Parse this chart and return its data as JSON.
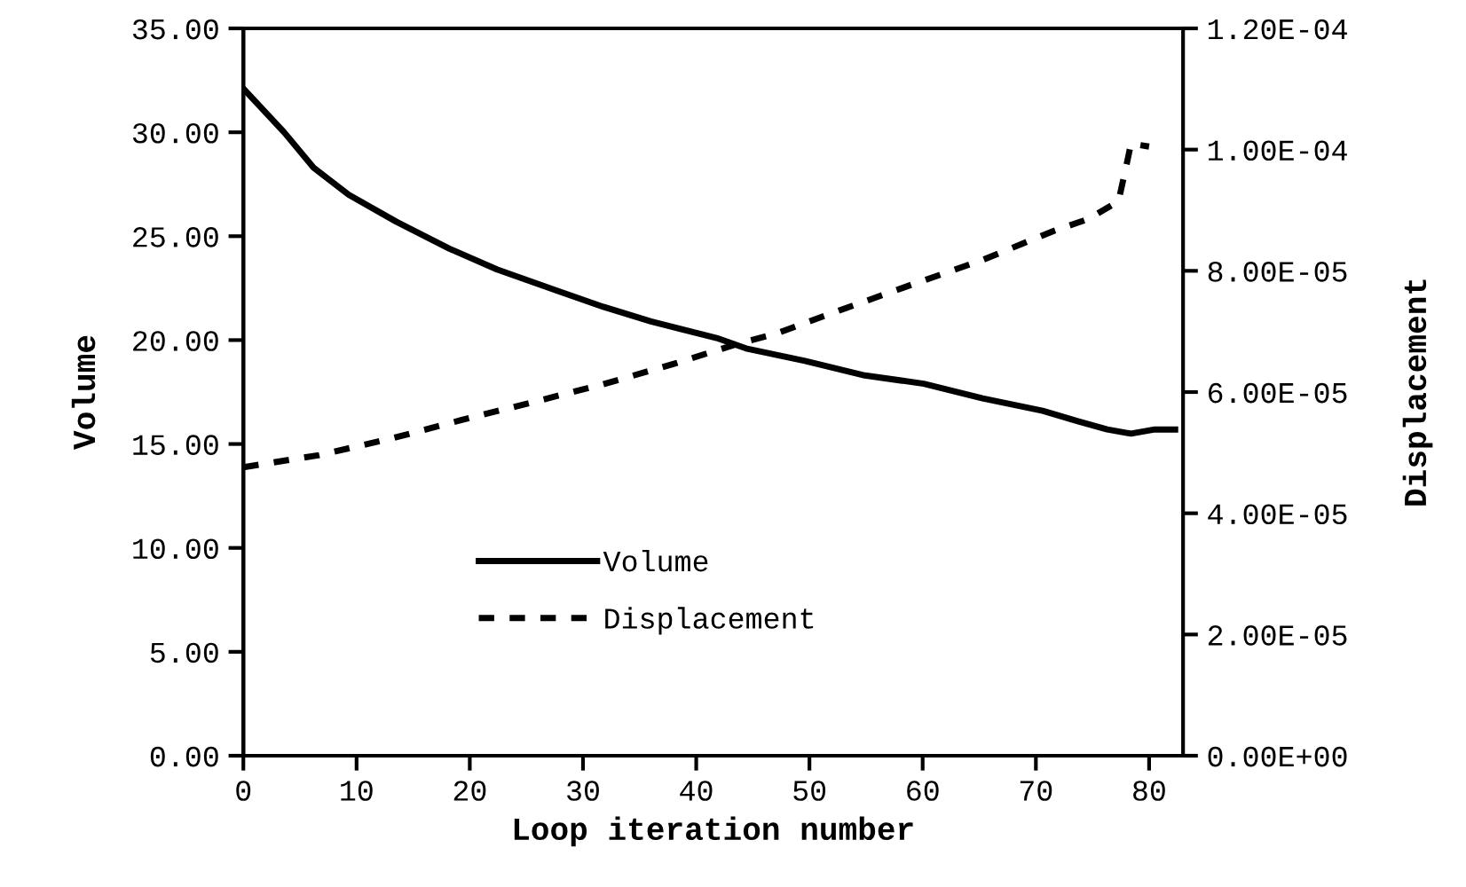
{
  "chart_data": {
    "type": "line",
    "xlabel": "Loop iteration number",
    "ylabel": "Volume",
    "y2label": "Displacement",
    "xlim": [
      0,
      83
    ],
    "xticks": [
      0,
      10,
      20,
      30,
      40,
      50,
      60,
      70,
      80
    ],
    "ylim": [
      0,
      35
    ],
    "yticks": [
      {
        "value": 0,
        "label": "0.00"
      },
      {
        "value": 5,
        "label": "5.00"
      },
      {
        "value": 10,
        "label": "10.00"
      },
      {
        "value": 15,
        "label": "15.00"
      },
      {
        "value": 20,
        "label": "20.00"
      },
      {
        "value": 25,
        "label": "25.00"
      },
      {
        "value": 30,
        "label": "30.00"
      },
      {
        "value": 35,
        "label": "35.00"
      }
    ],
    "y2lim": [
      0,
      0.00012
    ],
    "y2ticks": [
      {
        "value": 0,
        "label": "0.00E+00"
      },
      {
        "value": 2e-05,
        "label": "2.00E-05"
      },
      {
        "value": 4e-05,
        "label": "4.00E-05"
      },
      {
        "value": 6e-05,
        "label": "6.00E-05"
      },
      {
        "value": 8e-05,
        "label": "8.00E-05"
      },
      {
        "value": 0.0001,
        "label": "1.00E-04"
      },
      {
        "value": 0.00012,
        "label": "1.20E-04"
      }
    ],
    "grid": false,
    "legend": "lower center",
    "marker": "none",
    "series": [
      {
        "name": "Volume",
        "color": "#000000",
        "line_style": "solid",
        "x": [
          0,
          3.6,
          6.2,
          9.3,
          13.5,
          18.2,
          22.4,
          27.6,
          31.8,
          36,
          41.8,
          44.4,
          49.6,
          54.9,
          60.1,
          65.3,
          70.6,
          73.7,
          76.3,
          78.4,
          80.5,
          82.3
        ],
        "values": [
          32.1,
          30.0,
          28.3,
          27.0,
          25.7,
          24.4,
          23.4,
          22.4,
          21.6,
          20.9,
          20.1,
          19.6,
          19.0,
          18.3,
          17.9,
          17.2,
          16.6,
          16.1,
          15.7,
          15.5,
          15.7,
          15.7
        ]
      },
      {
        "name": "Displacement",
        "color": "#000000",
        "line_style": "dashed",
        "axis": "y2",
        "x": [
          0,
          6.7,
          13,
          19.3,
          25.5,
          31.8,
          38.1,
          43.9,
          47,
          52.7,
          59,
          65.3,
          71.6,
          74.7,
          77.3,
          78.1,
          78.4,
          80
        ],
        "values": [
          4.76e-05,
          4.96e-05,
          5.23e-05,
          5.54e-05,
          5.83e-05,
          6.13e-05,
          6.47e-05,
          6.81e-05,
          6.96e-05,
          7.35e-05,
          7.77e-05,
          8.18e-05,
          8.66e-05,
          8.86e-05,
          9.15e-05,
          9.83e-05,
          0.000101,
          0.0001005
        ]
      }
    ]
  }
}
